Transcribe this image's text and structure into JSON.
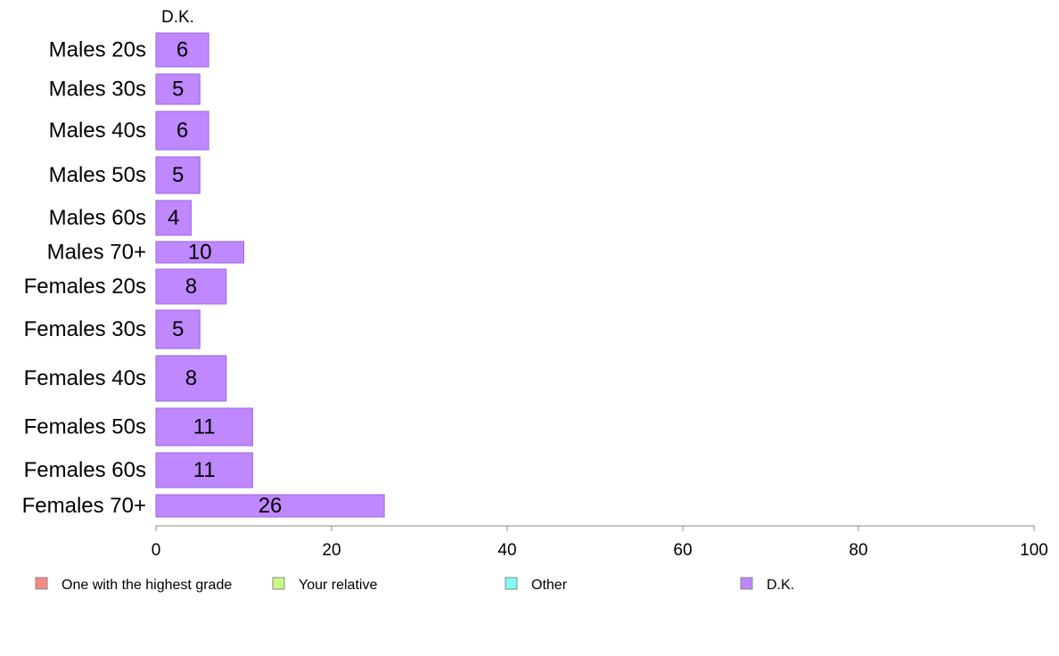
{
  "chart_data": {
    "type": "bar",
    "orientation": "horizontal",
    "panel_title": "D.K.",
    "categories": [
      "Males 20s",
      "Males 30s",
      "Males 40s",
      "Males 50s",
      "Males 60s",
      "Males 70+",
      "Females 20s",
      "Females 30s",
      "Females 40s",
      "Females 50s",
      "Females 60s",
      "Females 70+"
    ],
    "series": [
      {
        "name": "D.K.",
        "color": "#bf88ff",
        "values": [
          6,
          5,
          6,
          5,
          4,
          10,
          8,
          5,
          8,
          11,
          11,
          26
        ]
      }
    ],
    "xlim": [
      0,
      100
    ],
    "xticks": [
      0,
      20,
      40,
      60,
      80,
      100
    ],
    "grid": false,
    "legend_position": "bottom",
    "legend": [
      {
        "label": "One with the highest grade",
        "color": "#f88a84"
      },
      {
        "label": "Your relative",
        "color": "#c8fa86"
      },
      {
        "label": "Other",
        "color": "#80fdf6"
      },
      {
        "label": "D.K.",
        "color": "#bf88ff"
      }
    ],
    "bar_stroke_color": "#9966dd"
  }
}
